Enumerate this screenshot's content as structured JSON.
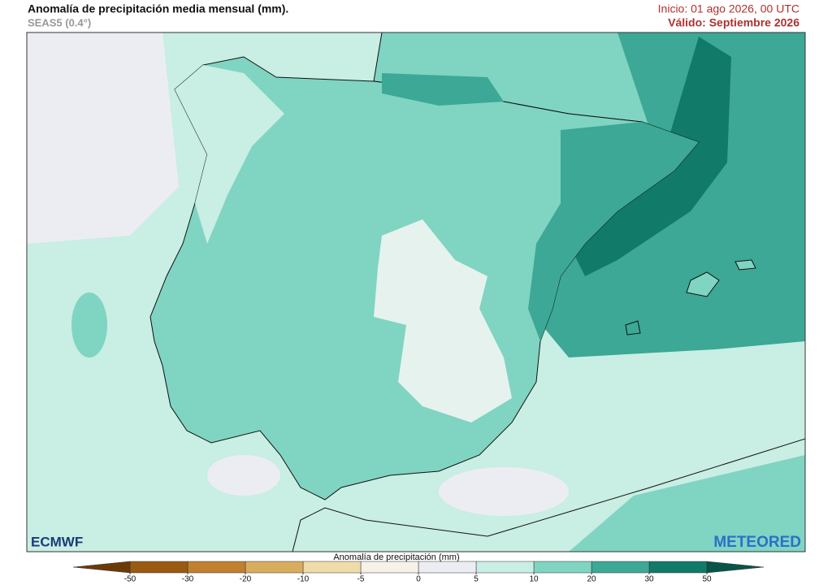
{
  "header": {
    "title": "Anomalía de precipitación media mensual (mm).",
    "subtitle": "SEAS5 (0.4°)",
    "init": "Inicio: 01 ago 2026, 00 UTC",
    "valid": "Válido: Septiembre 2026"
  },
  "colorbar": {
    "label": "Anomalía de precipitación (mm)",
    "ticks": [
      -50,
      -30,
      -20,
      -10,
      -5,
      0,
      5,
      10,
      20,
      30,
      50
    ],
    "colors": [
      "#6b3a08",
      "#9a5a12",
      "#c08030",
      "#d9ad5e",
      "#f0dca8",
      "#f7f2e8",
      "#ecedf2",
      "#c9eee3",
      "#80d4c2",
      "#3ca895",
      "#127a68",
      "#075548"
    ]
  },
  "logos": {
    "left": "ECMWF",
    "right": "METEORED"
  }
}
